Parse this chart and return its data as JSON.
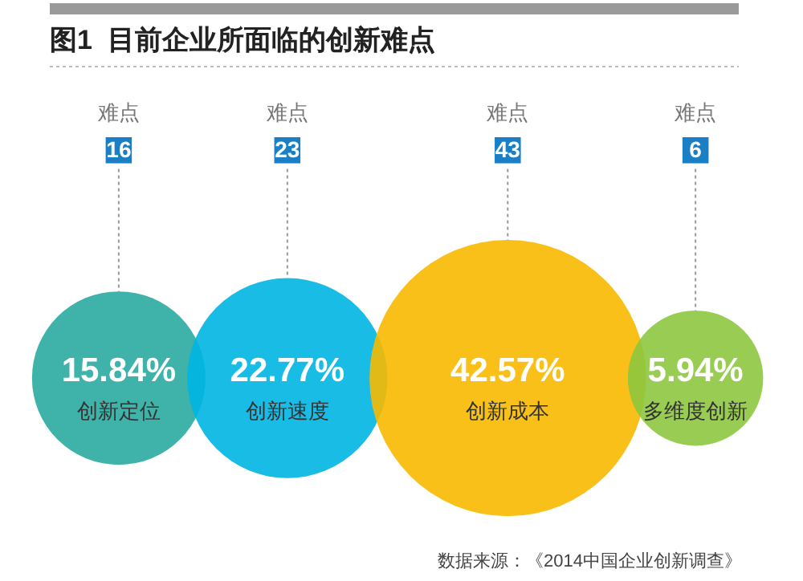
{
  "chart_data": {
    "type": "other",
    "title": "图1  目前企业所面临的创新难点",
    "categories": [
      "创新定位",
      "创新速度",
      "创新成本",
      "多维度创新"
    ],
    "series": [
      {
        "name": "难点",
        "type": "other",
        "color": "#1a7fc4",
        "values": [
          16,
          23,
          43,
          6
        ],
        "value_labels": [
          "16",
          "23",
          "43",
          "6"
        ]
      },
      {
        "type": "bubble",
        "colors": [
          "#2aaaa0",
          "#00b5e2",
          "#f7b900",
          "#8dc63f"
        ],
        "values": [
          15.84,
          22.77,
          42.57,
          5.94
        ],
        "value_labels": [
          "15.84%",
          "22.77%",
          "42.57%",
          "5.94%"
        ]
      }
    ],
    "annotations": [
      "数据来源：《2014中国企业创新调查》"
    ]
  }
}
